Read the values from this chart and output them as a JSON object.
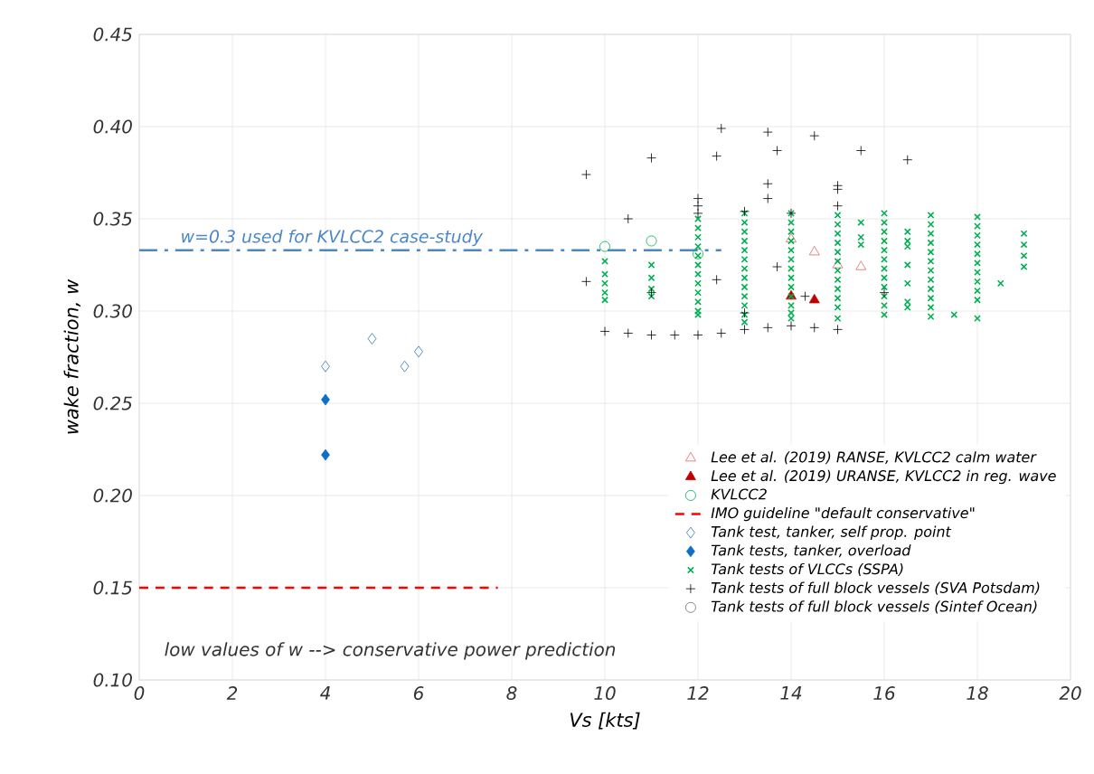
{
  "chart_data": {
    "type": "scatter",
    "xlabel": "Vs [kts]",
    "ylabel": "wake fraction, w",
    "xlim": [
      0,
      20
    ],
    "xticks": [
      0,
      2,
      4,
      6,
      8,
      10,
      12,
      14,
      16,
      18,
      20
    ],
    "ylim": [
      0.1,
      0.45
    ],
    "yticks": [
      {
        "value": 0.1,
        "label": "0.10"
      },
      {
        "value": 0.15,
        "label": "0.15"
      },
      {
        "value": 0.2,
        "label": "0.20"
      },
      {
        "value": 0.25,
        "label": "0.25"
      },
      {
        "value": 0.3,
        "label": "0.30"
      },
      {
        "value": 0.35,
        "label": "0.35"
      },
      {
        "value": 0.4,
        "label": "0.40"
      },
      {
        "value": 0.45,
        "label": "0.45"
      }
    ],
    "grid": true,
    "legend": "bottom right",
    "annotations": [
      {
        "text": "w=0.3 used for KVLCC2 case-study",
        "x": 0.8,
        "y": 0.333
      },
      "low values of w --> conservative power prediction"
    ],
    "series": [
      {
        "name": "Lee et al. (2019) RANSE, KVLCC2 calm water",
        "type": "scatter",
        "marker": "triangle",
        "color": "#e06666",
        "x": [
          14.0,
          14.5,
          15.0,
          15.5
        ],
        "values": [
          0.339,
          0.332,
          0.325,
          0.324
        ]
      },
      {
        "name": "Lee et al. (2019) URANSE, KVLCC2 in reg. wave",
        "type": "scatter",
        "marker": "triangle-filled",
        "color": "#c00000",
        "x": [
          14.0,
          14.5
        ],
        "values": [
          0.308,
          0.306
        ]
      },
      {
        "name": "KVLCC2",
        "type": "scatter",
        "marker": "circle",
        "color": "#00b050",
        "x": [
          10.0,
          11.0,
          12.0
        ],
        "values": [
          0.335,
          0.338,
          0.331
        ]
      },
      {
        "name": "IMO guideline \"default conservative\"",
        "type": "line",
        "line_style": "dashed",
        "color": "#ff0000",
        "x": [
          0,
          7.7
        ],
        "values": [
          0.15,
          0.15
        ]
      },
      {
        "name": "Tank test, tanker, self prop. point",
        "type": "scatter",
        "marker": "diamond",
        "color": "#2e75b6",
        "x": [
          4.0,
          5.0,
          5.7,
          6.0
        ],
        "values": [
          0.27,
          0.285,
          0.27,
          0.278
        ]
      },
      {
        "name": "Tank tests, tanker, overload",
        "type": "scatter",
        "marker": "diamond-filled",
        "color": "#0f6fc6",
        "x": [
          4.0,
          4.0
        ],
        "values": [
          0.252,
          0.222
        ]
      },
      {
        "name": "Tank tests of VLCCs (SSPA)",
        "type": "scatter",
        "marker": "cross",
        "color": "#00b050",
        "x": [
          10,
          10,
          10,
          10,
          10,
          11,
          11,
          11,
          11,
          12,
          12,
          12,
          12,
          12,
          12,
          12,
          12,
          12,
          12,
          12,
          12,
          13,
          13,
          13,
          13,
          13,
          13,
          13,
          13,
          13,
          13,
          13,
          13,
          13,
          14,
          14,
          14,
          14,
          14,
          14,
          14,
          14,
          14,
          14,
          14,
          14,
          14,
          15,
          15,
          15,
          15,
          15,
          15,
          15,
          15,
          15,
          15,
          15,
          15,
          15.5,
          15.5,
          15.5,
          16,
          16,
          16,
          16,
          16,
          16,
          16,
          16,
          16,
          16,
          16,
          16,
          16.5,
          16.5,
          16.5,
          16.5,
          16.5,
          16.5,
          16.5,
          17,
          17,
          17,
          17,
          17,
          17,
          17,
          17,
          17,
          17,
          17,
          17,
          17.5,
          18,
          18,
          18,
          18,
          18,
          18,
          18,
          18,
          18,
          18,
          18,
          18.5,
          19,
          19,
          19,
          19
        ],
        "values": [
          0.327,
          0.32,
          0.315,
          0.31,
          0.306,
          0.325,
          0.318,
          0.312,
          0.308,
          0.35,
          0.345,
          0.34,
          0.335,
          0.33,
          0.325,
          0.32,
          0.315,
          0.31,
          0.305,
          0.3,
          0.298,
          0.353,
          0.348,
          0.343,
          0.338,
          0.333,
          0.328,
          0.323,
          0.318,
          0.313,
          0.308,
          0.303,
          0.298,
          0.294,
          0.353,
          0.348,
          0.343,
          0.338,
          0.333,
          0.328,
          0.323,
          0.318,
          0.313,
          0.308,
          0.303,
          0.299,
          0.296,
          0.352,
          0.347,
          0.342,
          0.337,
          0.332,
          0.327,
          0.322,
          0.317,
          0.312,
          0.307,
          0.302,
          0.296,
          0.348,
          0.34,
          0.336,
          0.353,
          0.348,
          0.343,
          0.338,
          0.333,
          0.328,
          0.323,
          0.318,
          0.313,
          0.308,
          0.303,
          0.298,
          0.343,
          0.338,
          0.335,
          0.325,
          0.315,
          0.305,
          0.302,
          0.352,
          0.347,
          0.342,
          0.337,
          0.332,
          0.327,
          0.322,
          0.317,
          0.312,
          0.307,
          0.302,
          0.297,
          0.298,
          0.351,
          0.346,
          0.341,
          0.336,
          0.331,
          0.326,
          0.321,
          0.316,
          0.311,
          0.306,
          0.296,
          0.315,
          0.342,
          0.336,
          0.33,
          0.324
        ]
      },
      {
        "name": "Tank tests of full block vessels (SVA Potsdam)",
        "type": "scatter",
        "marker": "plus",
        "color": "#000000",
        "x": [
          9.6,
          10.5,
          9.6,
          11.0,
          11.0,
          10.0,
          10.5,
          11.0,
          11.5,
          12.0,
          12.5,
          13.0,
          13.5,
          14.0,
          14.5,
          15.0,
          12.5,
          12.4,
          13.5,
          13.7,
          14.5,
          15.5,
          16.5,
          13.5,
          13.5,
          15.0,
          15.0,
          15.0,
          12.0,
          12.0,
          12.0,
          13.0,
          14.0,
          12.4,
          13.7,
          14.3,
          16.0,
          13.0
        ],
        "values": [
          0.374,
          0.35,
          0.316,
          0.383,
          0.31,
          0.289,
          0.288,
          0.287,
          0.287,
          0.287,
          0.288,
          0.29,
          0.291,
          0.292,
          0.291,
          0.29,
          0.399,
          0.384,
          0.397,
          0.387,
          0.395,
          0.387,
          0.382,
          0.369,
          0.361,
          0.368,
          0.366,
          0.357,
          0.361,
          0.357,
          0.353,
          0.354,
          0.353,
          0.317,
          0.324,
          0.308,
          0.31,
          0.299
        ]
      },
      {
        "name": "Tank tests of full block vessels (Sintef Ocean)",
        "type": "scatter",
        "marker": "circle",
        "color": "#707070"
      },
      {
        "type": "line",
        "line_style": "dashdot",
        "color": "#4a86c8",
        "x": [
          0,
          12.5
        ],
        "values": [
          0.333,
          0.333
        ]
      }
    ]
  }
}
